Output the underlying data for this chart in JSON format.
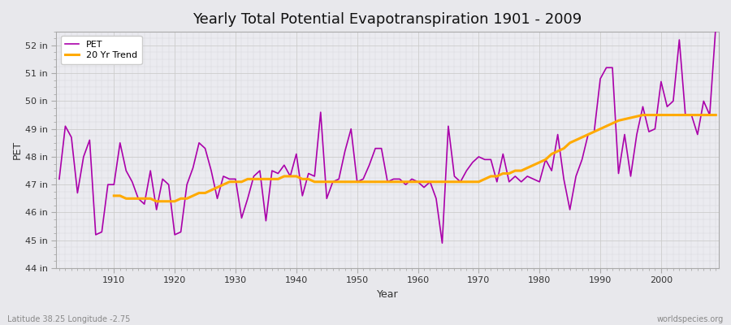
{
  "title": "Yearly Total Potential Evapotranspiration 1901 - 2009",
  "xlabel": "Year",
  "ylabel": "PET",
  "footnote_left": "Latitude 38.25 Longitude -2.75",
  "footnote_right": "worldspecies.org",
  "pet_color": "#aa00aa",
  "trend_color": "#ffaa00",
  "bg_color": "#e8e8ec",
  "plot_bg_color": "#ebebf0",
  "ylim": [
    44,
    52.5
  ],
  "yticks": [
    44,
    45,
    46,
    47,
    48,
    49,
    50,
    51,
    52
  ],
  "ytick_labels": [
    "44 in",
    "45 in",
    "46 in",
    "47 in",
    "48 in",
    "49 in",
    "50 in",
    "51 in",
    "52 in"
  ],
  "xticks": [
    1910,
    1920,
    1930,
    1940,
    1950,
    1960,
    1970,
    1980,
    1990,
    2000
  ],
  "years": [
    1901,
    1902,
    1903,
    1904,
    1905,
    1906,
    1907,
    1908,
    1909,
    1910,
    1911,
    1912,
    1913,
    1914,
    1915,
    1916,
    1917,
    1918,
    1919,
    1920,
    1921,
    1922,
    1923,
    1924,
    1925,
    1926,
    1927,
    1928,
    1929,
    1930,
    1931,
    1932,
    1933,
    1934,
    1935,
    1936,
    1937,
    1938,
    1939,
    1940,
    1941,
    1942,
    1943,
    1944,
    1945,
    1946,
    1947,
    1948,
    1949,
    1950,
    1951,
    1952,
    1953,
    1954,
    1955,
    1956,
    1957,
    1958,
    1959,
    1960,
    1961,
    1962,
    1963,
    1964,
    1965,
    1966,
    1967,
    1968,
    1969,
    1970,
    1971,
    1972,
    1973,
    1974,
    1975,
    1976,
    1977,
    1978,
    1979,
    1980,
    1981,
    1982,
    1983,
    1984,
    1985,
    1986,
    1987,
    1988,
    1989,
    1990,
    1991,
    1992,
    1993,
    1994,
    1995,
    1996,
    1997,
    1998,
    1999,
    2000,
    2001,
    2002,
    2003,
    2004,
    2005,
    2006,
    2007,
    2008,
    2009
  ],
  "pet": [
    47.2,
    49.1,
    48.7,
    46.7,
    48.0,
    48.6,
    45.2,
    45.3,
    47.0,
    47.0,
    48.5,
    47.5,
    47.1,
    46.5,
    46.3,
    47.5,
    46.1,
    47.2,
    47.0,
    45.2,
    45.3,
    47.0,
    47.6,
    48.5,
    48.3,
    47.5,
    46.5,
    47.3,
    47.2,
    47.2,
    45.8,
    46.5,
    47.3,
    47.5,
    45.7,
    47.5,
    47.4,
    47.7,
    47.3,
    48.1,
    46.6,
    47.4,
    47.3,
    49.6,
    46.5,
    47.1,
    47.2,
    48.2,
    49.0,
    47.1,
    47.2,
    47.7,
    48.3,
    48.3,
    47.1,
    47.2,
    47.2,
    47.0,
    47.2,
    47.1,
    46.9,
    47.1,
    46.5,
    44.9,
    49.1,
    47.3,
    47.1,
    47.5,
    47.8,
    48.0,
    47.9,
    47.9,
    47.1,
    48.1,
    47.1,
    47.3,
    47.1,
    47.3,
    47.2,
    47.1,
    47.9,
    47.5,
    48.8,
    47.2,
    46.1,
    47.3,
    47.9,
    48.8,
    48.9,
    50.8,
    51.2,
    51.2,
    47.4,
    48.8,
    47.3,
    48.8,
    49.8,
    48.9,
    49.0,
    50.7,
    49.8,
    50.0,
    52.2,
    49.5,
    49.5,
    48.8,
    50.0,
    49.5,
    52.7
  ],
  "trend_years": [
    1910,
    1911,
    1912,
    1913,
    1914,
    1915,
    1916,
    1917,
    1918,
    1919,
    1920,
    1921,
    1922,
    1923,
    1924,
    1925,
    1926,
    1927,
    1928,
    1929,
    1930,
    1931,
    1932,
    1933,
    1934,
    1935,
    1936,
    1937,
    1938,
    1939,
    1940,
    1941,
    1942,
    1943,
    1944,
    1945,
    1946,
    1947,
    1948,
    1949,
    1950,
    1951,
    1952,
    1953,
    1954,
    1955,
    1956,
    1957,
    1958,
    1959,
    1960,
    1961,
    1962,
    1963,
    1964,
    1965,
    1966,
    1967,
    1968,
    1969,
    1970,
    1971,
    1972,
    1973,
    1974,
    1975,
    1976,
    1977,
    1978,
    1979,
    1980,
    1981,
    1982,
    1983,
    1984,
    1985,
    1986,
    1987,
    1988,
    1989,
    1990,
    1991,
    1992,
    1993,
    1994,
    1995,
    1996,
    1997,
    1998,
    1999,
    2000,
    2001,
    2002,
    2003,
    2004,
    2005,
    2006,
    2007,
    2008,
    2009
  ],
  "trend": [
    46.6,
    46.6,
    46.5,
    46.5,
    46.5,
    46.5,
    46.5,
    46.4,
    46.4,
    46.4,
    46.4,
    46.5,
    46.5,
    46.6,
    46.7,
    46.7,
    46.8,
    46.9,
    47.0,
    47.1,
    47.1,
    47.1,
    47.2,
    47.2,
    47.2,
    47.2,
    47.2,
    47.2,
    47.3,
    47.3,
    47.3,
    47.2,
    47.2,
    47.1,
    47.1,
    47.1,
    47.1,
    47.1,
    47.1,
    47.1,
    47.1,
    47.1,
    47.1,
    47.1,
    47.1,
    47.1,
    47.1,
    47.1,
    47.1,
    47.1,
    47.1,
    47.1,
    47.1,
    47.1,
    47.1,
    47.1,
    47.1,
    47.1,
    47.1,
    47.1,
    47.1,
    47.2,
    47.3,
    47.3,
    47.4,
    47.4,
    47.5,
    47.5,
    47.6,
    47.7,
    47.8,
    47.9,
    48.1,
    48.2,
    48.3,
    48.5,
    48.6,
    48.7,
    48.8,
    48.9,
    49.0,
    49.1,
    49.2,
    49.3,
    49.35,
    49.4,
    49.45,
    49.5,
    49.5,
    49.5,
    49.5,
    49.5,
    49.5,
    49.5,
    49.5,
    49.5,
    49.5,
    49.5,
    49.5,
    49.5
  ]
}
